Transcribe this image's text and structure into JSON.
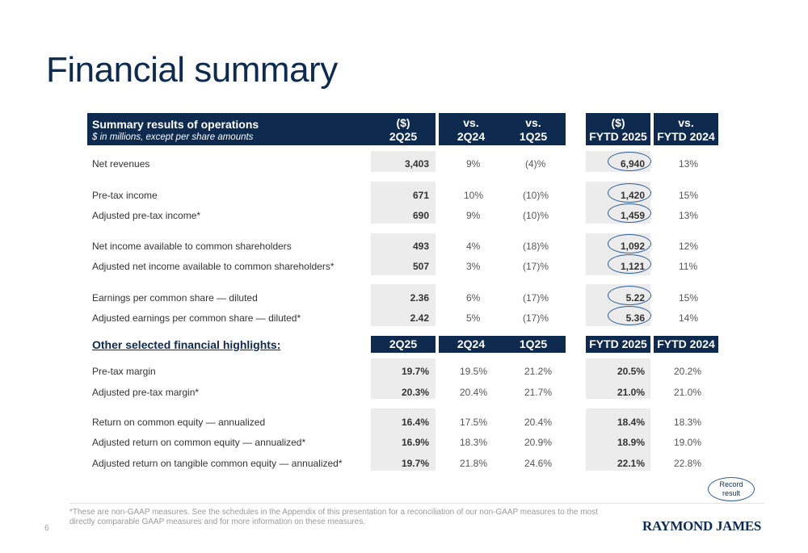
{
  "title": "Financial summary",
  "header": {
    "title": "Summary results of operations",
    "subtitle": "$ in millions, except per share amounts",
    "columns": [
      {
        "line1": "($)",
        "line2": "2Q25"
      },
      {
        "line1": "vs.",
        "line2": "2Q24"
      },
      {
        "line1": "vs.",
        "line2": "1Q25"
      },
      {
        "line1": "($)",
        "line2": "FYTD 2025"
      },
      {
        "line1": "vs.",
        "line2": "FYTD 2024"
      }
    ]
  },
  "summary_rows": [
    {
      "label": "Net revenues",
      "v1": "3,403",
      "v2": "9%",
      "v3": "(4)%",
      "v4": "6,940",
      "v5": "13%"
    },
    {
      "label": "Pre-tax income",
      "v1": "671",
      "v2": "10%",
      "v3": "(10)%",
      "v4": "1,420",
      "v5": "15%"
    },
    {
      "label": "Adjusted pre-tax income*",
      "v1": "690",
      "v2": "9%",
      "v3": "(10)%",
      "v4": "1,459",
      "v5": "13%"
    },
    {
      "label": "Net income available to common shareholders",
      "v1": "493",
      "v2": "4%",
      "v3": "(18)%",
      "v4": "1,092",
      "v5": "12%"
    },
    {
      "label": "Adjusted net income available to common shareholders*",
      "v1": "507",
      "v2": "3%",
      "v3": "(17)%",
      "v4": "1,121",
      "v5": "11%"
    },
    {
      "label": "Earnings per common share — diluted",
      "v1": "2.36",
      "v2": "6%",
      "v3": "(17)%",
      "v4": "5.22",
      "v5": "15%"
    },
    {
      "label": "Adjusted earnings per common share — diluted*",
      "v1": "2.42",
      "v2": "5%",
      "v3": "(17)%",
      "v4": "5.36",
      "v5": "14%"
    }
  ],
  "other": {
    "title": "Other selected financial highlights:",
    "columns": [
      "2Q25",
      "2Q24",
      "1Q25",
      "FYTD 2025",
      "FYTD 2024"
    ]
  },
  "other_rows": [
    {
      "label": "Pre-tax margin",
      "v1": "19.7%",
      "v2": "19.5%",
      "v3": "21.2%",
      "v4": "20.5%",
      "v5": "20.2%"
    },
    {
      "label": "Adjusted pre-tax margin*",
      "v1": "20.3%",
      "v2": "20.4%",
      "v3": "21.7%",
      "v4": "21.0%",
      "v5": "21.0%"
    },
    {
      "label": "Return on common equity — annualized",
      "v1": "16.4%",
      "v2": "17.5%",
      "v3": "20.4%",
      "v4": "18.4%",
      "v5": "18.3%"
    },
    {
      "label": "Adjusted return on common equity — annualized*",
      "v1": "16.9%",
      "v2": "18.3%",
      "v3": "20.9%",
      "v4": "18.9%",
      "v5": "19.0%"
    },
    {
      "label": "Adjusted return on tangible common equity — annualized*",
      "v1": "19.7%",
      "v2": "21.8%",
      "v3": "24.6%",
      "v4": "22.1%",
      "v5": "22.8%"
    }
  ],
  "record_label": "Record result",
  "footnote": "*These are non-GAAP measures. See the schedules in the Appendix of this presentation for a reconciliation of our non-GAAP measures to the most directly comparable GAAP measures and for more information on these measures.",
  "page_number": "6",
  "logo_text": "RAYMOND JAMES",
  "colors": {
    "navy": "#0e2a4f",
    "shade": "#ececec",
    "oval": "#2e5e9e"
  }
}
